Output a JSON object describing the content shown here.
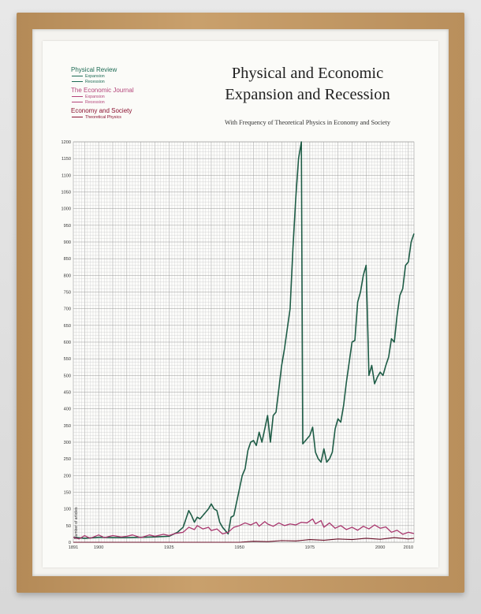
{
  "poster": {
    "title_line1": "Physical and Economic",
    "title_line2": "Expansion and Recession",
    "subtitle": "With Frequency of Theoretical Physics in Economy and Society"
  },
  "legend": {
    "groups": [
      {
        "name": "Physical Review",
        "color": "#1e6b55",
        "items": [
          {
            "label": "Expansion",
            "color": "#1e6b55"
          },
          {
            "label": "Recession",
            "color": "#1e6b55"
          }
        ]
      },
      {
        "name": "The Economic Journal",
        "color": "#b4457a",
        "items": [
          {
            "label": "Expansion",
            "color": "#b4457a"
          },
          {
            "label": "Recession",
            "color": "#b4457a"
          }
        ]
      },
      {
        "name": "Economy and Society",
        "color": "#8a1030",
        "items": [
          {
            "label": "Theoretical Physics",
            "color": "#8a1030"
          }
        ]
      }
    ]
  },
  "chart_data": {
    "type": "line",
    "title": "",
    "xlabel": "",
    "ylabel": "Number of articles",
    "xlim": [
      1891,
      2010
    ],
    "ylim": [
      0,
      1200
    ],
    "grid": true,
    "x_ticks": [
      1891,
      1900,
      1925,
      1950,
      1975,
      2000,
      2010
    ],
    "y_ticks": [
      0,
      50,
      100,
      150,
      200,
      250,
      300,
      350,
      400,
      450,
      500,
      550,
      600,
      650,
      700,
      750,
      800,
      850,
      900,
      950,
      1000,
      1050,
      1100,
      1150,
      1200
    ],
    "series": [
      {
        "name": "Physical Review",
        "color": "#1e5c46",
        "points": [
          [
            1891,
            15
          ],
          [
            1895,
            12
          ],
          [
            1900,
            15
          ],
          [
            1905,
            14
          ],
          [
            1910,
            14
          ],
          [
            1915,
            15
          ],
          [
            1920,
            16
          ],
          [
            1925,
            18
          ],
          [
            1928,
            30
          ],
          [
            1930,
            45
          ],
          [
            1931,
            70
          ],
          [
            1932,
            95
          ],
          [
            1933,
            80
          ],
          [
            1934,
            60
          ],
          [
            1935,
            75
          ],
          [
            1936,
            70
          ],
          [
            1937,
            80
          ],
          [
            1938,
            90
          ],
          [
            1939,
            100
          ],
          [
            1940,
            115
          ],
          [
            1941,
            100
          ],
          [
            1942,
            95
          ],
          [
            1943,
            60
          ],
          [
            1944,
            45
          ],
          [
            1945,
            35
          ],
          [
            1946,
            25
          ],
          [
            1947,
            75
          ],
          [
            1948,
            80
          ],
          [
            1949,
            120
          ],
          [
            1950,
            160
          ],
          [
            1951,
            200
          ],
          [
            1952,
            220
          ],
          [
            1953,
            275
          ],
          [
            1954,
            300
          ],
          [
            1955,
            305
          ],
          [
            1956,
            290
          ],
          [
            1957,
            330
          ],
          [
            1958,
            300
          ],
          [
            1959,
            340
          ],
          [
            1960,
            380
          ],
          [
            1961,
            300
          ],
          [
            1962,
            380
          ],
          [
            1963,
            390
          ],
          [
            1964,
            460
          ],
          [
            1965,
            530
          ],
          [
            1966,
            580
          ],
          [
            1967,
            640
          ],
          [
            1968,
            700
          ],
          [
            1969,
            880
          ],
          [
            1970,
            1030
          ],
          [
            1971,
            1150
          ],
          [
            1972,
            1200
          ],
          [
            1972.5,
            295
          ],
          [
            1974,
            310
          ],
          [
            1975,
            320
          ],
          [
            1976,
            345
          ],
          [
            1977,
            270
          ],
          [
            1978,
            250
          ],
          [
            1979,
            240
          ],
          [
            1980,
            280
          ],
          [
            1981,
            240
          ],
          [
            1982,
            250
          ],
          [
            1983,
            270
          ],
          [
            1984,
            340
          ],
          [
            1985,
            370
          ],
          [
            1986,
            360
          ],
          [
            1987,
            410
          ],
          [
            1988,
            480
          ],
          [
            1989,
            540
          ],
          [
            1990,
            600
          ],
          [
            1991,
            605
          ],
          [
            1992,
            720
          ],
          [
            1993,
            750
          ],
          [
            1994,
            800
          ],
          [
            1995,
            830
          ],
          [
            1996,
            500
          ],
          [
            1997,
            530
          ],
          [
            1998,
            475
          ],
          [
            1999,
            495
          ],
          [
            2000,
            510
          ],
          [
            2001,
            500
          ],
          [
            2002,
            530
          ],
          [
            2003,
            555
          ],
          [
            2004,
            610
          ],
          [
            2005,
            600
          ],
          [
            2006,
            680
          ],
          [
            2007,
            740
          ],
          [
            2008,
            760
          ],
          [
            2009,
            830
          ],
          [
            2010,
            840
          ],
          [
            2011,
            900
          ],
          [
            2012,
            925
          ]
        ]
      },
      {
        "name": "The Economic Journal",
        "color": "#a8366d",
        "points": [
          [
            1891,
            15
          ],
          [
            1893,
            10
          ],
          [
            1895,
            20
          ],
          [
            1897,
            12
          ],
          [
            1900,
            22
          ],
          [
            1902,
            14
          ],
          [
            1905,
            20
          ],
          [
            1908,
            16
          ],
          [
            1910,
            18
          ],
          [
            1912,
            22
          ],
          [
            1915,
            14
          ],
          [
            1918,
            22
          ],
          [
            1920,
            18
          ],
          [
            1923,
            24
          ],
          [
            1925,
            20
          ],
          [
            1927,
            26
          ],
          [
            1930,
            30
          ],
          [
            1932,
            45
          ],
          [
            1934,
            38
          ],
          [
            1935,
            50
          ],
          [
            1937,
            40
          ],
          [
            1939,
            45
          ],
          [
            1940,
            35
          ],
          [
            1942,
            40
          ],
          [
            1944,
            25
          ],
          [
            1946,
            30
          ],
          [
            1948,
            45
          ],
          [
            1950,
            50
          ],
          [
            1952,
            58
          ],
          [
            1954,
            52
          ],
          [
            1956,
            60
          ],
          [
            1957,
            48
          ],
          [
            1959,
            62
          ],
          [
            1960,
            55
          ],
          [
            1962,
            48
          ],
          [
            1964,
            58
          ],
          [
            1966,
            50
          ],
          [
            1968,
            55
          ],
          [
            1970,
            52
          ],
          [
            1972,
            60
          ],
          [
            1974,
            58
          ],
          [
            1976,
            70
          ],
          [
            1977,
            55
          ],
          [
            1979,
            65
          ],
          [
            1980,
            45
          ],
          [
            1982,
            58
          ],
          [
            1984,
            42
          ],
          [
            1986,
            50
          ],
          [
            1988,
            38
          ],
          [
            1990,
            45
          ],
          [
            1992,
            36
          ],
          [
            1994,
            48
          ],
          [
            1996,
            40
          ],
          [
            1998,
            52
          ],
          [
            2000,
            42
          ],
          [
            2002,
            46
          ],
          [
            2004,
            30
          ],
          [
            2006,
            36
          ],
          [
            2008,
            24
          ],
          [
            2010,
            30
          ],
          [
            2012,
            26
          ]
        ]
      },
      {
        "name": "Economy and Society",
        "color": "#6a0f28",
        "points": [
          [
            1891,
            0
          ],
          [
            1900,
            0
          ],
          [
            1925,
            0
          ],
          [
            1950,
            0
          ],
          [
            1955,
            3
          ],
          [
            1960,
            2
          ],
          [
            1965,
            5
          ],
          [
            1970,
            4
          ],
          [
            1975,
            8
          ],
          [
            1980,
            6
          ],
          [
            1985,
            10
          ],
          [
            1990,
            8
          ],
          [
            1995,
            12
          ],
          [
            2000,
            9
          ],
          [
            2005,
            14
          ],
          [
            2010,
            10
          ],
          [
            2012,
            12
          ]
        ]
      }
    ]
  }
}
